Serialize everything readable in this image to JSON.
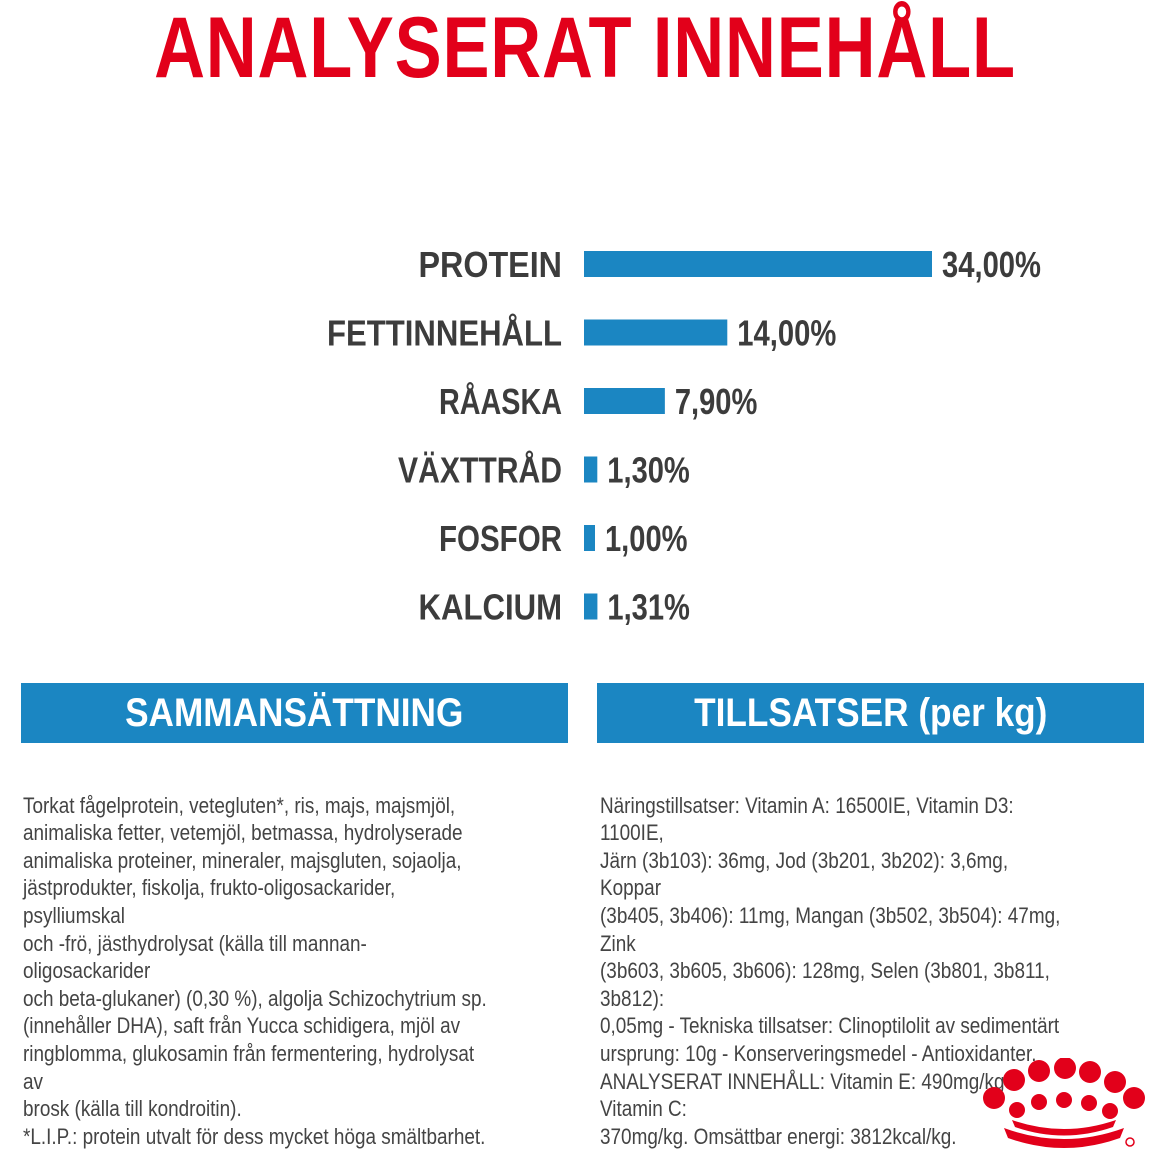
{
  "title": "ANALYSERAT INNEHÅLL",
  "colors": {
    "title": "#e2001a",
    "bar": "#1b86c2",
    "header_bg": "#1b86c2",
    "label_text": "#3c3c3c",
    "body_text": "#444444",
    "logo": "#e2001a"
  },
  "chart_data": {
    "type": "bar",
    "orientation": "horizontal",
    "categories": [
      "PROTEIN",
      "FETTINNEHÅLL",
      "RÅASKA",
      "VÄXTTRÅD",
      "FOSFOR",
      "KALCIUM"
    ],
    "values": [
      34.0,
      14.0,
      7.9,
      1.3,
      1.0,
      1.31
    ],
    "value_labels": [
      "34,00%",
      "14,00%",
      "7,90%",
      "1,30%",
      "1,00%",
      "1,31%"
    ],
    "unit": "%",
    "title": "",
    "xlabel": "",
    "ylabel": "",
    "grid": false,
    "legend": "none"
  },
  "composition": {
    "header": "SAMMANSÄTTNING",
    "text": "Torkat fågelprotein, vetegluten*, ris, majs, majsmjöl,\nanimaliska fetter, vetemjöl, betmassa, hydrolyserade\nanimaliska proteiner, mineraler, majsgluten, sojaolja,\njästprodukter, fiskolja, frukto-oligosackarider, psylliumskal\noch -frö, jästhydrolysat (källa till mannan-oligosackarider\noch beta-glukaner) (0,30 %), algolja Schizochytrium sp.\n(innehåller DHA), saft från Yucca schidigera, mjöl av\nringblomma, glukosamin från fermentering, hydrolysat av\nbrosk (källa till kondroitin).\n*L.I.P.: protein utvalt för dess mycket höga smältbarhet."
  },
  "additives": {
    "header": "TILLSATSER (per kg)",
    "text": "Näringstillsatser: Vitamin A: 16500IE, Vitamin D3: 1100IE,\nJärn (3b103): 36mg, Jod (3b201, 3b202): 3,6mg, Koppar\n(3b405, 3b406): 11mg, Mangan (3b502, 3b504): 47mg, Zink\n(3b603, 3b605, 3b606): 128mg, Selen (3b801, 3b811, 3b812):\n0,05mg - Tekniska tillsatser: Clinoptilolit av sedimentärt\nursprung: 10g - Konserveringsmedel - Antioxidanter.\nANALYSERAT INNEHÅLL: Vitamin E: 490mg/kg - Vitamin C:\n370mg/kg. Omsättbar energi: 3812kcal/kg."
  },
  "logo": {
    "icon": "royal-canin-crown-logo"
  }
}
